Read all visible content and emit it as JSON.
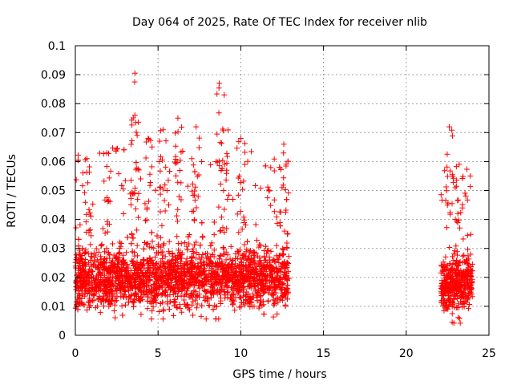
{
  "chart_data": {
    "type": "scatter",
    "title": "Day 064 of 2025, Rate Of TEC Index for receiver nlib",
    "xlabel": "GPS time / hours",
    "ylabel": "ROTI / TECUs",
    "xlim": [
      0,
      25
    ],
    "ylim": [
      0,
      0.1
    ],
    "x_ticks": [
      0,
      5,
      10,
      15,
      20,
      25
    ],
    "y_ticks": [
      0,
      0.01,
      0.02,
      0.03,
      0.04,
      0.05,
      0.06,
      0.07,
      0.08,
      0.09,
      0.1
    ],
    "x_tick_labels": [
      "0",
      "5",
      "10",
      "15",
      "20",
      "25"
    ],
    "y_tick_labels": [
      "0",
      "0.01",
      "0.02",
      "0.03",
      "0.04",
      "0.05",
      "0.06",
      "0.07",
      "0.08",
      "0.09",
      "0.1"
    ],
    "grid": true,
    "marker": "+",
    "marker_color": "#ff0000",
    "series": [
      {
        "name": "ROTI",
        "segments": [
          {
            "x_start": 0.0,
            "x_end": 12.9,
            "typical_range": [
              0.008,
              0.04
            ],
            "median": 0.02
          },
          {
            "x_start": 22.1,
            "x_end": 24.0,
            "typical_range": [
              0.006,
              0.035
            ],
            "median": 0.018
          }
        ],
        "peaks": [
          {
            "x": 0.7,
            "y": 0.061
          },
          {
            "x": 1.9,
            "y": 0.063
          },
          {
            "x": 3.6,
            "y": 0.0905
          },
          {
            "x": 3.6,
            "y": 0.076
          },
          {
            "x": 4.4,
            "y": 0.068
          },
          {
            "x": 5.3,
            "y": 0.071
          },
          {
            "x": 6.2,
            "y": 0.075
          },
          {
            "x": 7.3,
            "y": 0.072
          },
          {
            "x": 8.7,
            "y": 0.087
          },
          {
            "x": 9.0,
            "y": 0.083
          },
          {
            "x": 10.0,
            "y": 0.068
          },
          {
            "x": 12.6,
            "y": 0.066
          },
          {
            "x": 22.6,
            "y": 0.072
          },
          {
            "x": 23.2,
            "y": 0.059
          }
        ]
      }
    ]
  }
}
